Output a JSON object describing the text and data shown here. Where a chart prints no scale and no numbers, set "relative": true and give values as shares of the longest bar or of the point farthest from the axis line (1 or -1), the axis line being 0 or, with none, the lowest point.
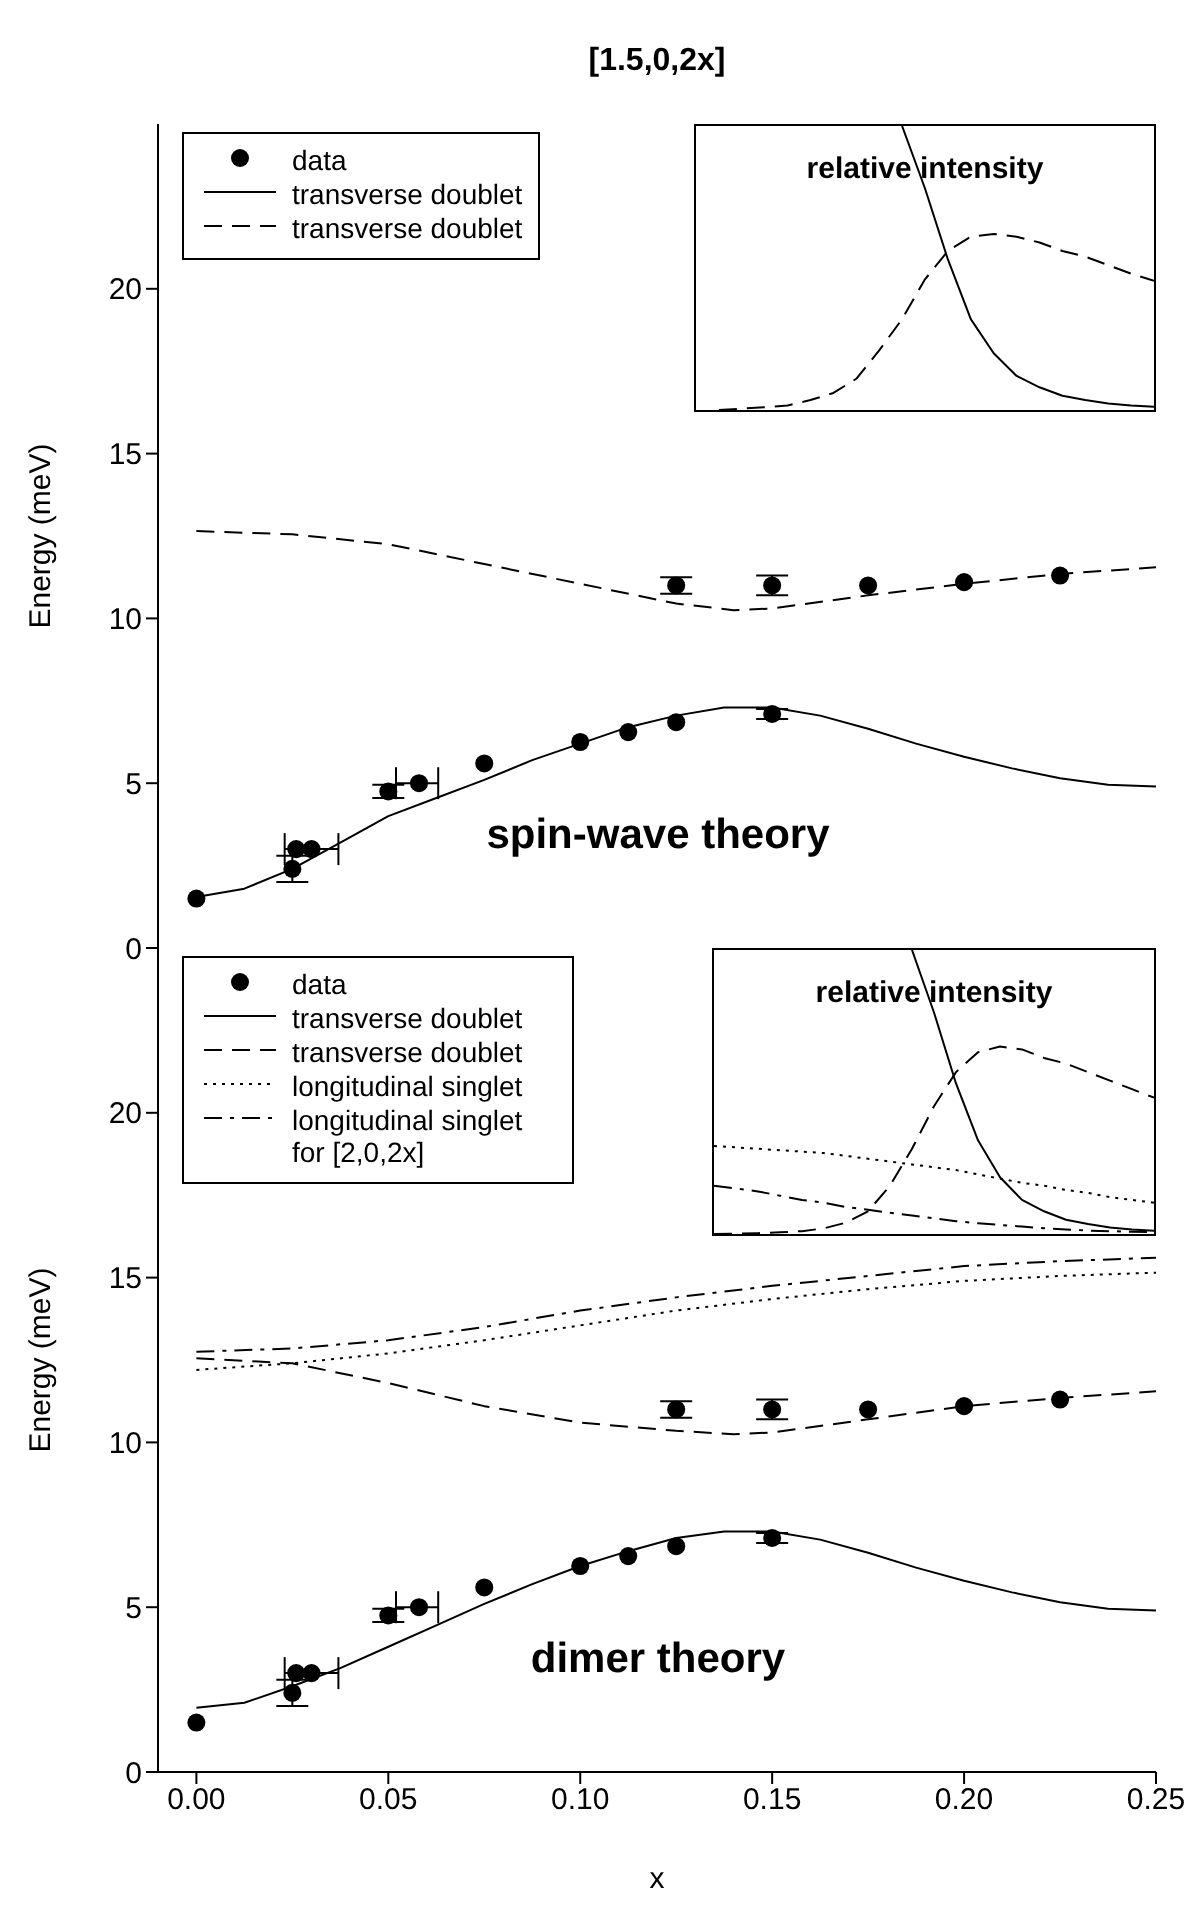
{
  "chart_data": [
    {
      "type": "line",
      "title": "[1.5,0,2x]",
      "ylabel": "Energy (meV)",
      "xlim": [
        -0.01,
        0.25
      ],
      "ylim": [
        0,
        25
      ],
      "yticks": [
        0,
        5,
        10,
        15,
        20
      ],
      "tick_labels": "y",
      "legend": "top left",
      "annotations": [
        "spin-wave theory"
      ],
      "series": [
        {
          "name": "data",
          "type": "scatter",
          "color": "#000000",
          "marker": "circle",
          "x": [
            0,
            0.025,
            0.026,
            0.03,
            0.05,
            0.058,
            0.075,
            0.1,
            0.1125,
            0.125,
            0.15,
            0.125,
            0.15,
            0.175,
            0.2,
            0.225
          ],
          "values": [
            1.5,
            2.4,
            3.0,
            3.0,
            4.75,
            5.0,
            5.6,
            6.25,
            6.55,
            6.85,
            7.1,
            11.0,
            11.0,
            11.0,
            11.1,
            11.3
          ],
          "errors": [
            null,
            0.4,
            null,
            null,
            0.2,
            null,
            null,
            null,
            null,
            null,
            0.15,
            0.25,
            0.3,
            null,
            null,
            null
          ],
          "xerrors": [
            null,
            null,
            null,
            [
              0.023,
              0.037
            ],
            null,
            [
              0.052,
              0.063
            ],
            null,
            null,
            null,
            null,
            null,
            null,
            null,
            null,
            null,
            null
          ]
        },
        {
          "name": "transverse doublet",
          "color": "#000000",
          "line_style": "solid",
          "marker": "none",
          "x": [
            0,
            0.0125,
            0.025,
            0.0375,
            0.05,
            0.0625,
            0.075,
            0.0875,
            0.1,
            0.1125,
            0.125,
            0.1375,
            0.15,
            0.1625,
            0.175,
            0.1875,
            0.2,
            0.2125,
            0.225,
            0.2375,
            0.25
          ],
          "values": [
            1.55,
            1.8,
            2.4,
            3.2,
            4.0,
            4.55,
            5.1,
            5.7,
            6.2,
            6.7,
            7.05,
            7.3,
            7.3,
            7.05,
            6.65,
            6.2,
            5.8,
            5.45,
            5.15,
            4.95,
            4.9
          ]
        },
        {
          "name": "transverse doublet",
          "color": "#000000",
          "line_style": "dashed",
          "marker": "none",
          "x": [
            0,
            0.025,
            0.05,
            0.075,
            0.1,
            0.125,
            0.14,
            0.15,
            0.175,
            0.2,
            0.225,
            0.25
          ],
          "values": [
            12.65,
            12.55,
            12.25,
            11.65,
            11.05,
            10.45,
            10.25,
            10.3,
            10.7,
            11.05,
            11.35,
            11.55
          ]
        }
      ]
    },
    {
      "type": "line",
      "title": "relative intensity",
      "relative": true,
      "tick_labels": false,
      "categories": [
        null,
        null,
        null,
        null,
        null,
        null,
        null,
        null,
        null,
        null,
        null,
        null,
        null,
        null,
        null,
        null,
        null,
        null,
        null,
        null,
        null
      ],
      "series": [
        {
          "color": "#000000",
          "line_style": "solid",
          "marker": "none",
          "values": [
            null,
            null,
            null,
            null,
            null,
            null,
            null,
            null,
            null,
            1,
            0.78,
            0.53,
            0.32,
            0.2,
            0.12,
            0.08,
            0.05,
            0.035,
            0.023,
            0.016,
            0.011
          ]
        },
        {
          "color": "#000000",
          "line_style": "dashed",
          "marker": "none",
          "values": [
            null,
            0,
            0.005,
            0.01,
            0.016,
            0.035,
            0.06,
            0.11,
            0.21,
            0.32,
            0.46,
            0.56,
            0.61,
            0.62,
            0.61,
            0.59,
            0.56,
            0.54,
            0.51,
            0.48,
            0.455
          ]
        }
      ]
    },
    {
      "type": "line",
      "xlabel": "x",
      "ylabel": "Energy (meV)",
      "xlim": [
        -0.01,
        0.25
      ],
      "ylim": [
        0,
        25
      ],
      "xticks": [
        {
          "value": 0,
          "label": "0.00"
        },
        {
          "value": 0.05,
          "label": "0.05"
        },
        {
          "value": 0.1,
          "label": "0.10"
        },
        {
          "value": 0.15,
          "label": "0.15"
        },
        {
          "value": 0.2,
          "label": "0.20"
        },
        {
          "value": 0.25,
          "label": "0.25"
        }
      ],
      "yticks": [
        0,
        5,
        10,
        15,
        20
      ],
      "legend": "top left",
      "annotations": [
        "dimer theory"
      ],
      "series": [
        {
          "name": "data",
          "type": "scatter",
          "color": "#000000",
          "marker": "circle",
          "x": [
            0,
            0.025,
            0.026,
            0.03,
            0.05,
            0.058,
            0.075,
            0.1,
            0.1125,
            0.125,
            0.15,
            0.125,
            0.15,
            0.175,
            0.2,
            0.225
          ],
          "values": [
            1.5,
            2.4,
            3.0,
            3.0,
            4.75,
            5.0,
            5.6,
            6.25,
            6.55,
            6.85,
            7.1,
            11.0,
            11.0,
            11.0,
            11.1,
            11.3
          ],
          "errors": [
            null,
            0.4,
            null,
            null,
            0.2,
            null,
            null,
            null,
            null,
            null,
            0.15,
            0.25,
            0.3,
            null,
            null,
            null
          ],
          "xerrors": [
            null,
            null,
            null,
            [
              0.023,
              0.037
            ],
            null,
            [
              0.052,
              0.063
            ],
            null,
            null,
            null,
            null,
            null,
            null,
            null,
            null,
            null,
            null
          ]
        },
        {
          "name": "transverse doublet",
          "color": "#000000",
          "line_style": "solid",
          "marker": "none",
          "x": [
            0,
            0.0125,
            0.025,
            0.0375,
            0.05,
            0.0625,
            0.075,
            0.0875,
            0.1,
            0.1125,
            0.125,
            0.1375,
            0.15,
            0.1625,
            0.175,
            0.1875,
            0.2,
            0.2125,
            0.225,
            0.2375,
            0.25
          ],
          "values": [
            1.95,
            2.1,
            2.6,
            3.15,
            3.8,
            4.45,
            5.1,
            5.7,
            6.25,
            6.7,
            7.1,
            7.3,
            7.3,
            7.05,
            6.65,
            6.2,
            5.8,
            5.45,
            5.15,
            4.95,
            4.9
          ]
        },
        {
          "name": "transverse doublet",
          "color": "#000000",
          "line_style": "dashed",
          "marker": "none",
          "x": [
            0,
            0.025,
            0.05,
            0.075,
            0.1,
            0.125,
            0.14,
            0.15,
            0.175,
            0.2,
            0.225,
            0.25
          ],
          "values": [
            12.55,
            12.4,
            11.8,
            11.1,
            10.6,
            10.35,
            10.25,
            10.3,
            10.7,
            11.1,
            11.35,
            11.55
          ]
        },
        {
          "name": "longitudinal singlet",
          "color": "#000000",
          "line_style": "dotted",
          "marker": "none",
          "x": [
            0,
            0.025,
            0.05,
            0.075,
            0.1,
            0.125,
            0.15,
            0.175,
            0.2,
            0.225,
            0.25
          ],
          "values": [
            12.2,
            12.4,
            12.7,
            13.1,
            13.55,
            14.0,
            14.35,
            14.65,
            14.9,
            15.05,
            15.15
          ]
        },
        {
          "name": "longitudinal singlet for [2,0,2x]",
          "color": "#000000",
          "line_style": "dashdot",
          "marker": "none",
          "x": [
            0,
            0.025,
            0.05,
            0.075,
            0.1,
            0.125,
            0.15,
            0.175,
            0.2,
            0.225,
            0.25
          ],
          "values": [
            12.75,
            12.85,
            13.1,
            13.5,
            14.0,
            14.4,
            14.75,
            15.05,
            15.35,
            15.5,
            15.6
          ]
        }
      ]
    },
    {
      "type": "line",
      "title": "relative intensity",
      "relative": true,
      "tick_labels": false,
      "categories": [
        null,
        null,
        null,
        null,
        null,
        null,
        null,
        null,
        null,
        null,
        null,
        null,
        null,
        null,
        null,
        null,
        null,
        null,
        null,
        null,
        null
      ],
      "series": [
        {
          "color": "#000000",
          "line_style": "solid",
          "marker": "none",
          "values": [
            null,
            null,
            null,
            null,
            null,
            null,
            null,
            null,
            null,
            1,
            0.78,
            0.53,
            0.33,
            0.2,
            0.12,
            0.08,
            0.05,
            0.035,
            0.023,
            0.016,
            0.011
          ]
        },
        {
          "color": "#000000",
          "line_style": "dashed",
          "marker": "none",
          "values": [
            0,
            0.001,
            0.003,
            0.006,
            0.01,
            0.02,
            0.04,
            0.08,
            0.17,
            0.3,
            0.45,
            0.57,
            0.64,
            0.66,
            0.65,
            0.62,
            0.6,
            0.57,
            0.54,
            0.51,
            0.48
          ]
        },
        {
          "color": "#000000",
          "line_style": "dotted",
          "marker": "none",
          "values": [
            0.31,
            0.305,
            0.3,
            0.295,
            0.29,
            0.285,
            0.275,
            0.265,
            0.255,
            0.245,
            0.235,
            0.225,
            0.21,
            0.195,
            0.18,
            0.17,
            0.155,
            0.145,
            0.13,
            0.12,
            0.11
          ]
        },
        {
          "color": "#000000",
          "line_style": "dashdot",
          "marker": "none",
          "values": [
            0.17,
            0.16,
            0.15,
            0.135,
            0.12,
            0.11,
            0.095,
            0.085,
            0.075,
            0.065,
            0.055,
            0.045,
            0.038,
            0.032,
            0.026,
            0.02,
            0.016,
            0.012,
            0.01,
            0.008,
            0.006
          ]
        }
      ]
    }
  ]
}
